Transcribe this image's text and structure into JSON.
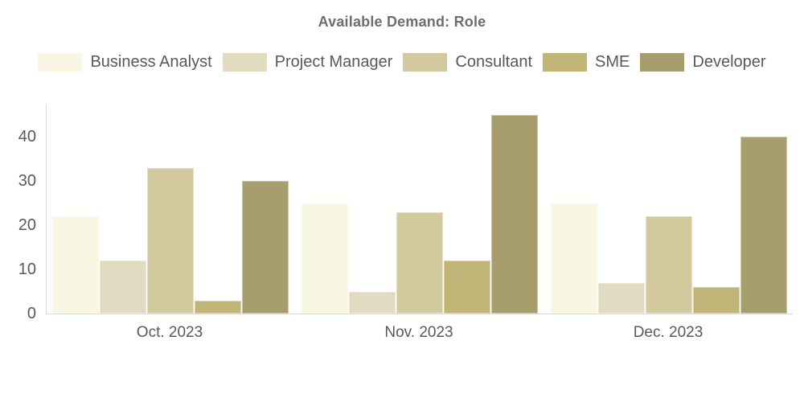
{
  "title": "Available Demand: Role",
  "chart_data": {
    "type": "bar",
    "title": "Available Demand: Role",
    "categories": [
      "Oct. 2023",
      "Nov. 2023",
      "Dec. 2023"
    ],
    "series": [
      {
        "name": "Business Analyst",
        "color": "#faf6e4",
        "values": [
          22,
          25,
          25
        ]
      },
      {
        "name": "Project Manager",
        "color": "#e1dbc2",
        "values": [
          12,
          5,
          7
        ]
      },
      {
        "name": "Consultant",
        "color": "#d2ca9e",
        "values": [
          33,
          23,
          22
        ]
      },
      {
        "name": "SME",
        "color": "#c0b577",
        "values": [
          3,
          12,
          6
        ]
      },
      {
        "name": "Developer",
        "color": "#a89e6d",
        "values": [
          30,
          45,
          40
        ]
      }
    ],
    "yticks": [
      0,
      10,
      20,
      30,
      40
    ],
    "ylim": [
      0,
      47.3
    ],
    "grid": false,
    "legend_position": "top",
    "colors": {
      "axis_line": "#d9d9d9",
      "axis_text": "#58595b",
      "title_text": "#6d6e71",
      "background": "#ffffff"
    }
  }
}
